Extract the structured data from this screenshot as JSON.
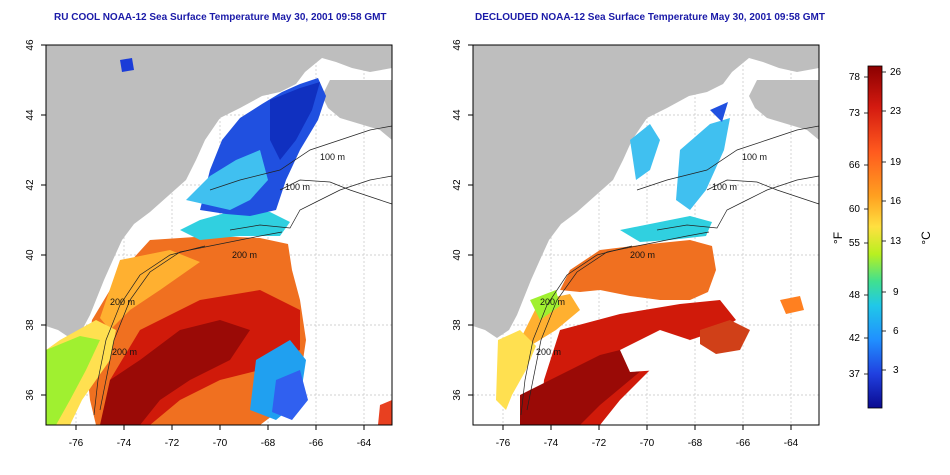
{
  "titles": {
    "left": "RU COOL NOAA-12 Sea Surface Temperature May 30, 2001 09:58 GMT",
    "right": "DECLOUDED NOAA-12 Sea Surface Temperature May 30, 2001 09:58 GMT"
  },
  "axes": {
    "lon_ticks": [
      "-76",
      "-74",
      "-72",
      "-70",
      "-68",
      "-66",
      "-64"
    ],
    "lat_ticks": [
      "36",
      "38",
      "40",
      "42",
      "44",
      "46"
    ]
  },
  "contour_labels": {
    "left": [
      "100 m",
      "100 m",
      "200 m",
      "200 m",
      "200 m"
    ],
    "right": [
      "100 m",
      "100 m",
      "200 m",
      "200 m",
      "200 m"
    ]
  },
  "colorbar": {
    "unit_f": "°F",
    "unit_c": "°C",
    "f_ticks": [
      "78",
      "73",
      "66",
      "60",
      "55",
      "48",
      "42",
      "37"
    ],
    "c_ticks": [
      "26",
      "23",
      "19",
      "16",
      "13",
      "9",
      "6",
      "3"
    ],
    "colors": [
      "#8b0000",
      "#d41a10",
      "#ff5a1e",
      "#ffa020",
      "#ffe040",
      "#b8f020",
      "#40e090",
      "#20c8e8",
      "#2090ff",
      "#2040e0",
      "#0a0a90"
    ]
  }
}
